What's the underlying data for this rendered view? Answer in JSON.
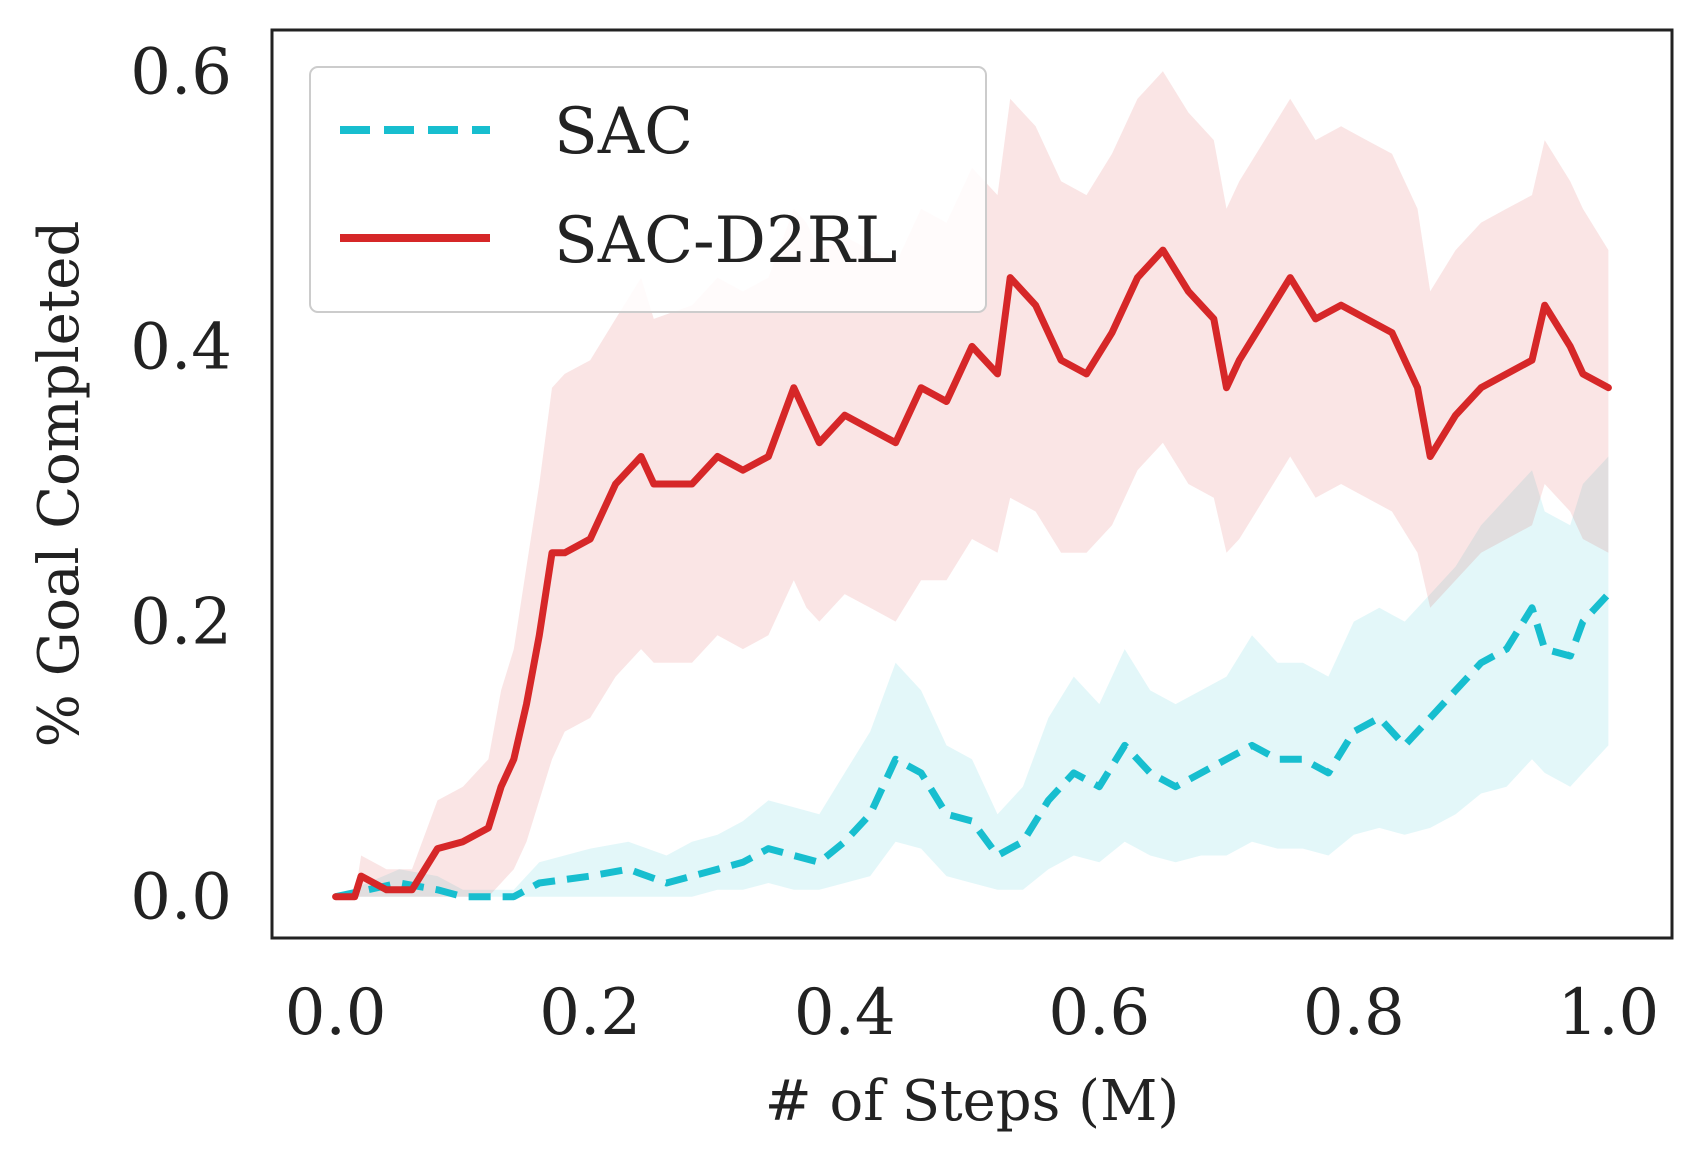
{
  "chart_data": {
    "type": "line",
    "title": "",
    "xlabel": "# of Steps (M)",
    "ylabel": "% Goal Completed",
    "xlim": [
      -0.05,
      1.05
    ],
    "ylim": [
      -0.03,
      0.63
    ],
    "xticks": [
      0.0,
      0.2,
      0.4,
      0.6,
      0.8,
      1.0
    ],
    "xtick_labels": [
      "0.0",
      "0.2",
      "0.4",
      "0.6",
      "0.8",
      "1.0"
    ],
    "yticks": [
      0.0,
      0.2,
      0.4,
      0.6
    ],
    "ytick_labels": [
      "0.0",
      "0.2",
      "0.4",
      "0.6"
    ],
    "grid": false,
    "legend_position": "top-left",
    "series": [
      {
        "name": "SAC",
        "color": "#17becf",
        "style": "dashed",
        "x": [
          0.0,
          0.05,
          0.08,
          0.1,
          0.14,
          0.16,
          0.2,
          0.23,
          0.26,
          0.28,
          0.3,
          0.32,
          0.34,
          0.36,
          0.38,
          0.4,
          0.42,
          0.44,
          0.46,
          0.48,
          0.5,
          0.52,
          0.54,
          0.56,
          0.58,
          0.6,
          0.62,
          0.64,
          0.66,
          0.68,
          0.7,
          0.72,
          0.74,
          0.76,
          0.78,
          0.8,
          0.82,
          0.84,
          0.86,
          0.88,
          0.9,
          0.92,
          0.94,
          0.95,
          0.97,
          0.98,
          1.0
        ],
        "y": [
          0.0,
          0.01,
          0.005,
          0.0,
          0.0,
          0.01,
          0.015,
          0.02,
          0.01,
          0.015,
          0.02,
          0.025,
          0.035,
          0.03,
          0.025,
          0.04,
          0.06,
          0.1,
          0.09,
          0.06,
          0.055,
          0.03,
          0.04,
          0.07,
          0.09,
          0.08,
          0.11,
          0.09,
          0.08,
          0.09,
          0.1,
          0.11,
          0.1,
          0.1,
          0.09,
          0.12,
          0.13,
          0.11,
          0.13,
          0.15,
          0.17,
          0.18,
          0.21,
          0.18,
          0.175,
          0.2,
          0.22
        ],
        "band_lower": [
          0.0,
          0.0,
          0.0,
          0.0,
          0.0,
          0.0,
          0.0,
          0.0,
          0.0,
          0.0,
          0.005,
          0.005,
          0.01,
          0.005,
          0.005,
          0.01,
          0.015,
          0.04,
          0.035,
          0.015,
          0.01,
          0.005,
          0.005,
          0.02,
          0.03,
          0.025,
          0.04,
          0.03,
          0.025,
          0.03,
          0.03,
          0.04,
          0.035,
          0.035,
          0.03,
          0.045,
          0.05,
          0.045,
          0.05,
          0.06,
          0.075,
          0.08,
          0.1,
          0.09,
          0.08,
          0.09,
          0.11
        ],
        "band_upper": [
          0.0,
          0.02,
          0.015,
          0.005,
          0.005,
          0.025,
          0.035,
          0.04,
          0.03,
          0.04,
          0.045,
          0.055,
          0.07,
          0.065,
          0.06,
          0.09,
          0.12,
          0.17,
          0.15,
          0.11,
          0.1,
          0.06,
          0.08,
          0.13,
          0.16,
          0.14,
          0.18,
          0.15,
          0.14,
          0.15,
          0.16,
          0.19,
          0.17,
          0.17,
          0.16,
          0.2,
          0.21,
          0.2,
          0.22,
          0.24,
          0.27,
          0.29,
          0.31,
          0.28,
          0.27,
          0.3,
          0.32
        ]
      },
      {
        "name": "SAC-D2RL",
        "color": "#d62728",
        "style": "solid",
        "x": [
          0.0,
          0.015,
          0.02,
          0.04,
          0.06,
          0.08,
          0.1,
          0.12,
          0.13,
          0.14,
          0.15,
          0.16,
          0.17,
          0.18,
          0.2,
          0.22,
          0.24,
          0.25,
          0.28,
          0.3,
          0.32,
          0.34,
          0.36,
          0.37,
          0.38,
          0.4,
          0.42,
          0.44,
          0.46,
          0.48,
          0.5,
          0.52,
          0.53,
          0.55,
          0.57,
          0.59,
          0.61,
          0.63,
          0.65,
          0.67,
          0.69,
          0.7,
          0.71,
          0.73,
          0.75,
          0.77,
          0.79,
          0.81,
          0.83,
          0.85,
          0.86,
          0.88,
          0.9,
          0.92,
          0.94,
          0.95,
          0.97,
          0.98,
          1.0
        ],
        "y": [
          0.0,
          0.0,
          0.015,
          0.005,
          0.005,
          0.035,
          0.04,
          0.05,
          0.08,
          0.1,
          0.14,
          0.19,
          0.25,
          0.25,
          0.26,
          0.3,
          0.32,
          0.3,
          0.3,
          0.32,
          0.31,
          0.32,
          0.37,
          0.35,
          0.33,
          0.35,
          0.34,
          0.33,
          0.37,
          0.36,
          0.4,
          0.38,
          0.45,
          0.43,
          0.39,
          0.38,
          0.41,
          0.45,
          0.47,
          0.44,
          0.42,
          0.37,
          0.39,
          0.42,
          0.45,
          0.42,
          0.43,
          0.42,
          0.41,
          0.37,
          0.32,
          0.35,
          0.37,
          0.38,
          0.39,
          0.43,
          0.4,
          0.38,
          0.37
        ],
        "band_lower": [
          0.0,
          0.0,
          0.0,
          0.0,
          0.0,
          0.0,
          0.0,
          0.0,
          0.01,
          0.02,
          0.04,
          0.07,
          0.1,
          0.12,
          0.13,
          0.16,
          0.18,
          0.17,
          0.17,
          0.19,
          0.18,
          0.19,
          0.23,
          0.21,
          0.2,
          0.22,
          0.21,
          0.2,
          0.23,
          0.23,
          0.26,
          0.25,
          0.29,
          0.28,
          0.25,
          0.25,
          0.27,
          0.31,
          0.33,
          0.3,
          0.29,
          0.25,
          0.26,
          0.29,
          0.32,
          0.29,
          0.3,
          0.29,
          0.28,
          0.25,
          0.21,
          0.23,
          0.25,
          0.26,
          0.27,
          0.3,
          0.28,
          0.26,
          0.25
        ],
        "band_upper": [
          0.0,
          0.0,
          0.03,
          0.02,
          0.02,
          0.07,
          0.08,
          0.1,
          0.15,
          0.18,
          0.24,
          0.3,
          0.37,
          0.38,
          0.39,
          0.42,
          0.45,
          0.42,
          0.43,
          0.45,
          0.44,
          0.45,
          0.5,
          0.49,
          0.47,
          0.48,
          0.47,
          0.46,
          0.5,
          0.49,
          0.53,
          0.51,
          0.58,
          0.56,
          0.52,
          0.51,
          0.54,
          0.58,
          0.6,
          0.57,
          0.55,
          0.5,
          0.52,
          0.55,
          0.58,
          0.55,
          0.56,
          0.55,
          0.54,
          0.5,
          0.44,
          0.47,
          0.49,
          0.5,
          0.51,
          0.55,
          0.52,
          0.5,
          0.47
        ]
      }
    ]
  }
}
